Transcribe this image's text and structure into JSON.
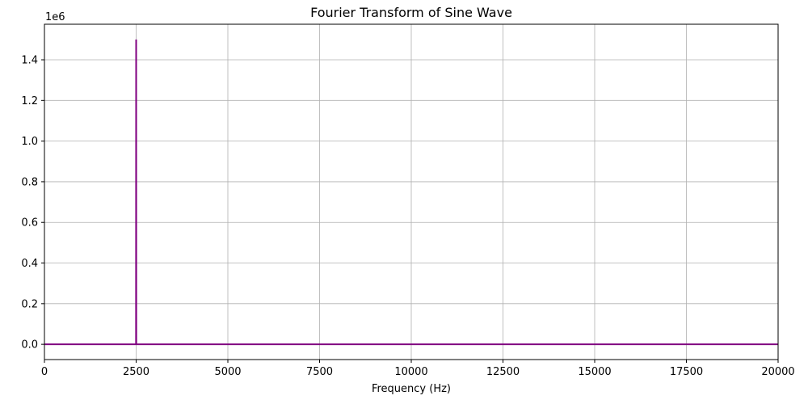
{
  "chart_data": {
    "type": "line",
    "title": "Fourier Transform of Sine Wave",
    "xlabel": "Frequency (Hz)",
    "ylabel": "",
    "y_multiplier_label": "1e6",
    "xlim": [
      0,
      20000
    ],
    "ylim": [
      -0.075,
      1.575
    ],
    "x_ticks": [
      0,
      2500,
      5000,
      7500,
      10000,
      12500,
      15000,
      17500,
      20000
    ],
    "x_tick_labels": [
      "0",
      "2500",
      "5000",
      "7500",
      "10000",
      "12500",
      "15000",
      "17500",
      "20000"
    ],
    "y_ticks": [
      0.0,
      0.2,
      0.4,
      0.6,
      0.8,
      1.0,
      1.2,
      1.4
    ],
    "y_tick_labels": [
      "0.0",
      "0.2",
      "0.4",
      "0.6",
      "0.8",
      "1.0",
      "1.2",
      "1.4"
    ],
    "grid": true,
    "legend": "none",
    "series": [
      {
        "color": "#800080",
        "x": [
          0,
          2497,
          2500,
          2503,
          20000
        ],
        "y": [
          0.0,
          0.0,
          1.5,
          0.0,
          0.0
        ]
      }
    ]
  }
}
